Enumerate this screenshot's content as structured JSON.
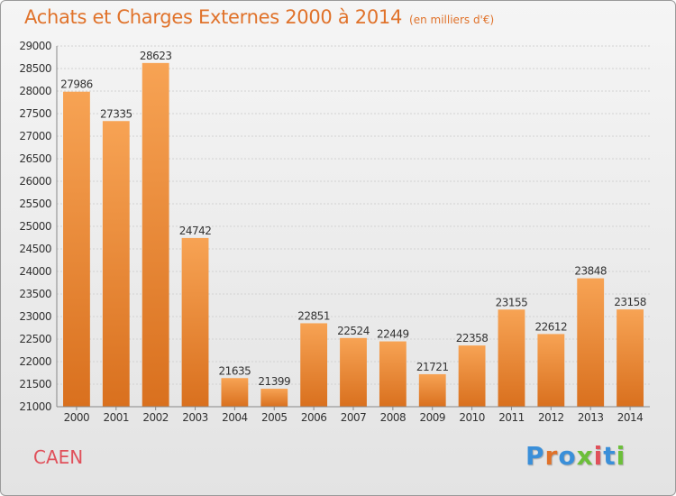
{
  "header": {
    "title": "Achats et Charges Externes 2000 à 2014",
    "subtitle": "(en milliers d'€)"
  },
  "footer": {
    "city": "CAEN",
    "logo_text": "Proxiti",
    "logo_colors": [
      "#3a8fd9",
      "#e0722a",
      "#3a8fd9",
      "#6cbf3a",
      "#e0505a",
      "#3a8fd9",
      "#6cbf3a"
    ]
  },
  "colors": {
    "bar_top": "#f7a354",
    "bar_bottom": "#d9701e",
    "title": "#e0722a",
    "city": "#e0505a"
  },
  "chart_data": {
    "type": "bar",
    "title": "Achats et Charges Externes 2000 à 2014",
    "subtitle": "(en milliers d'€)",
    "categories": [
      "2000",
      "2001",
      "2002",
      "2003",
      "2004",
      "2005",
      "2006",
      "2007",
      "2008",
      "2009",
      "2010",
      "2011",
      "2012",
      "2013",
      "2014"
    ],
    "values": [
      27986,
      27335,
      28623,
      24742,
      21635,
      21399,
      22851,
      22524,
      22449,
      21721,
      22358,
      23155,
      22612,
      23848,
      23158
    ],
    "ylim": [
      21000,
      29000
    ],
    "yticks": [
      21000,
      21500,
      22000,
      22500,
      23000,
      23500,
      24000,
      24500,
      25000,
      25500,
      26000,
      26500,
      27000,
      27500,
      28000,
      28500,
      29000
    ],
    "grid": true,
    "data_labels": true
  }
}
